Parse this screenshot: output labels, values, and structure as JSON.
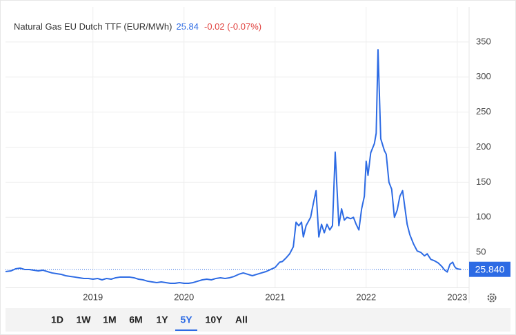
{
  "chart_data": {
    "type": "line",
    "title": "Natural Gas EU Dutch TTF (EUR/MWh)",
    "price": {
      "value": 25.84,
      "label": "25.840"
    },
    "change": "-0.02 (-0.07%)",
    "color": "#2d6be4",
    "grid": true,
    "xlim": [
      2018.04,
      2023.13
    ],
    "xticks": [
      2019,
      2020,
      2021,
      2022,
      2023
    ],
    "ylim": [
      0,
      400
    ],
    "yticks": [
      50,
      100,
      150,
      200,
      250,
      300,
      350
    ],
    "x": [
      2018.04,
      2018.1,
      2018.15,
      2018.2,
      2018.25,
      2018.3,
      2018.35,
      2018.4,
      2018.45,
      2018.5,
      2018.55,
      2018.6,
      2018.65,
      2018.7,
      2018.75,
      2018.8,
      2018.85,
      2018.9,
      2018.95,
      2019.0,
      2019.05,
      2019.1,
      2019.15,
      2019.2,
      2019.25,
      2019.3,
      2019.35,
      2019.4,
      2019.45,
      2019.5,
      2019.55,
      2019.6,
      2019.65,
      2019.7,
      2019.75,
      2019.8,
      2019.85,
      2019.9,
      2019.95,
      2020.0,
      2020.05,
      2020.1,
      2020.15,
      2020.2,
      2020.25,
      2020.3,
      2020.35,
      2020.4,
      2020.45,
      2020.5,
      2020.55,
      2020.6,
      2020.65,
      2020.7,
      2020.75,
      2020.8,
      2020.85,
      2020.9,
      2020.95,
      2021.0,
      2021.05,
      2021.08,
      2021.12,
      2021.16,
      2021.2,
      2021.23,
      2021.26,
      2021.29,
      2021.31,
      2021.34,
      2021.39,
      2021.42,
      2021.45,
      2021.48,
      2021.51,
      2021.54,
      2021.57,
      2021.6,
      2021.63,
      2021.66,
      2021.68,
      2021.7,
      2021.73,
      2021.76,
      2021.79,
      2021.83,
      2021.86,
      2021.89,
      2021.92,
      2021.95,
      2021.98,
      2022.0,
      2022.02,
      2022.05,
      2022.09,
      2022.11,
      2022.13,
      2022.16,
      2022.2,
      2022.22,
      2022.25,
      2022.28,
      2022.31,
      2022.34,
      2022.37,
      2022.4,
      2022.45,
      2022.48,
      2022.52,
      2022.56,
      2022.6,
      2022.64,
      2022.67,
      2022.71,
      2022.75,
      2022.79,
      2022.83,
      2022.86,
      2022.89,
      2022.92,
      2022.95,
      2022.97,
      2022.99,
      2023.02,
      2023.04
    ],
    "values": [
      22.6,
      23.6,
      26.5,
      27.5,
      25.6,
      25.5,
      24.6,
      23.6,
      24.6,
      22.6,
      20.7,
      19.7,
      18.7,
      16.7,
      15.7,
      14.8,
      13.8,
      12.8,
      12.8,
      11.8,
      12.8,
      10.8,
      12.8,
      11.8,
      13.8,
      14.8,
      14.8,
      14.8,
      13.8,
      11.8,
      10.8,
      8.9,
      7.9,
      6.9,
      7.9,
      6.9,
      5.9,
      5.9,
      6.9,
      5.9,
      5.9,
      6.9,
      8.9,
      10.8,
      11.8,
      10.8,
      12.8,
      13.8,
      12.8,
      13.8,
      15.7,
      18.7,
      20.7,
      18.7,
      16.7,
      18.7,
      20.7,
      22.6,
      25.6,
      28.5,
      36,
      37,
      42,
      48,
      58,
      93,
      88,
      93,
      72,
      88,
      100,
      120,
      138,
      72,
      90,
      78,
      90,
      82,
      88,
      193,
      140,
      88,
      112,
      96,
      100,
      98,
      100,
      90,
      82,
      112,
      130,
      180,
      160,
      192,
      205,
      220,
      339,
      212,
      195,
      190,
      150,
      140,
      100,
      110,
      130,
      138,
      90,
      75,
      62,
      52,
      50,
      45,
      48,
      40,
      38,
      35,
      30,
      25,
      22,
      33,
      36,
      30,
      27,
      26,
      25.84
    ],
    "range_buttons": [
      "1D",
      "1W",
      "1M",
      "6M",
      "1Y",
      "5Y",
      "10Y",
      "All"
    ],
    "selected_range": "5Y"
  }
}
